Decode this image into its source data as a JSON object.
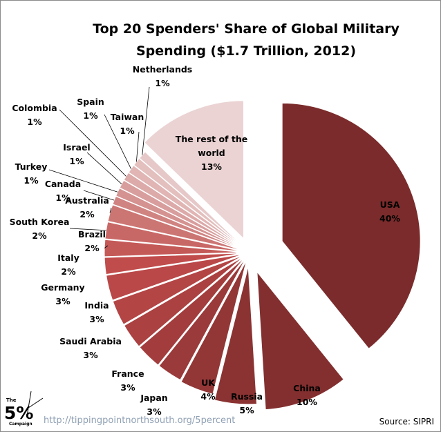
{
  "chart_data": {
    "type": "pie",
    "title_lines": [
      "Top 20 Spenders' Share of Global Military",
      "Spending ($1.7 Trillion, 2012)"
    ],
    "slices": [
      {
        "label": "USA",
        "value": 40,
        "value_label": "40%",
        "color": "#7b2b2b"
      },
      {
        "label": "China",
        "value": 10,
        "value_label": "10%",
        "color": "#832f2f"
      },
      {
        "label": "Russia",
        "value": 5,
        "value_label": "5%",
        "color": "#8b3333"
      },
      {
        "label": "UK",
        "value": 4,
        "value_label": "4%",
        "color": "#933636"
      },
      {
        "label": "Japan",
        "value": 3,
        "value_label": "3%",
        "color": "#9b3a3a"
      },
      {
        "label": "France",
        "value": 3,
        "value_label": "3%",
        "color": "#a33d3d"
      },
      {
        "label": "Saudi Arabia",
        "value": 3,
        "value_label": "3%",
        "color": "#ab4141"
      },
      {
        "label": "India",
        "value": 3,
        "value_label": "3%",
        "color": "#b34545"
      },
      {
        "label": "Germany",
        "value": 3,
        "value_label": "3%",
        "color": "#ba4848"
      },
      {
        "label": "Italy",
        "value": 2,
        "value_label": "2%",
        "color": "#c04c4b"
      },
      {
        "label": "Brazil",
        "value": 2,
        "value_label": "2%",
        "color": "#c45a58"
      },
      {
        "label": "South Korea",
        "value": 2,
        "value_label": "2%",
        "color": "#c86866"
      },
      {
        "label": "Australia",
        "value": 2,
        "value_label": "2%",
        "color": "#cc7674"
      },
      {
        "label": "Canada",
        "value": 1,
        "value_label": "1%",
        "color": "#d08482"
      },
      {
        "label": "Turkey",
        "value": 1,
        "value_label": "1%",
        "color": "#d49290"
      },
      {
        "label": "Israel",
        "value": 1,
        "value_label": "1%",
        "color": "#d89e9d"
      },
      {
        "label": "Colombia",
        "value": 1,
        "value_label": "1%",
        "color": "#dcaaa9"
      },
      {
        "label": "Spain",
        "value": 1,
        "value_label": "1%",
        "color": "#e0b5b4"
      },
      {
        "label": "Taiwan",
        "value": 1,
        "value_label": "1%",
        "color": "#e3bfbe"
      },
      {
        "label": "Netherlands",
        "value": 1,
        "value_label": "1%",
        "color": "#e6c8c8"
      },
      {
        "label": "The rest of the world",
        "value": 13,
        "value_label": "13%",
        "color": "#ebd3d3"
      }
    ],
    "legend": "none"
  },
  "source": "Source: SIPRI",
  "url": "http://tippingpointnorthsouth.org/5percent",
  "logo": {
    "top": "The",
    "big": "5%",
    "bottom": "Campaign"
  }
}
